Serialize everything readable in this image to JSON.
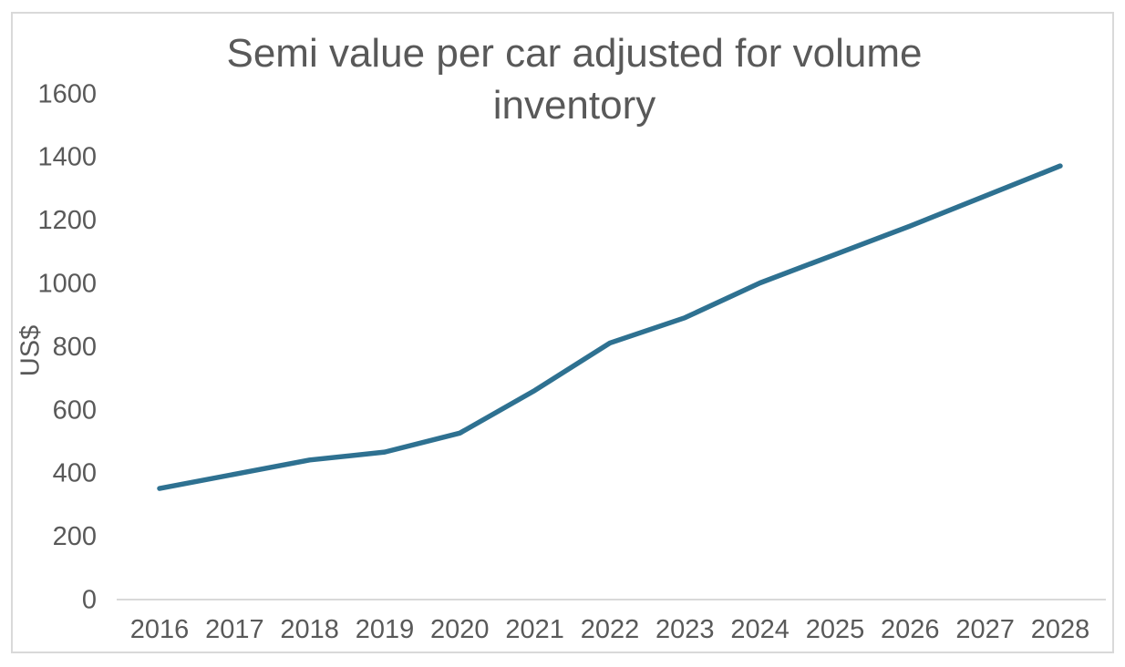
{
  "chart_data": {
    "type": "line",
    "title": "Semi value per car adjusted for volume inventory",
    "title_lines": [
      "Semi value per car adjusted for volume",
      "inventory"
    ],
    "ylabel": "US$",
    "xlabel": "",
    "categories": [
      "2016",
      "2017",
      "2018",
      "2019",
      "2020",
      "2021",
      "2022",
      "2023",
      "2024",
      "2025",
      "2026",
      "2027",
      "2028"
    ],
    "series": [
      {
        "color": "#2e7191",
        "values": [
          350,
          395,
          440,
          465,
          525,
          660,
          810,
          890,
          1000,
          1090,
          1180,
          1275,
          1370
        ]
      }
    ],
    "ylim": [
      0,
      1600
    ],
    "ytick_step": 200,
    "yticks": [
      0,
      200,
      400,
      600,
      800,
      1000,
      1200,
      1400,
      1600
    ],
    "grid": false,
    "legend_position": "none",
    "colors": {
      "line": "#2e7191",
      "text": "#595959",
      "axis_line": "#d9d9d9",
      "frame_border": "#d9d9d9",
      "background": "#ffffff"
    }
  }
}
